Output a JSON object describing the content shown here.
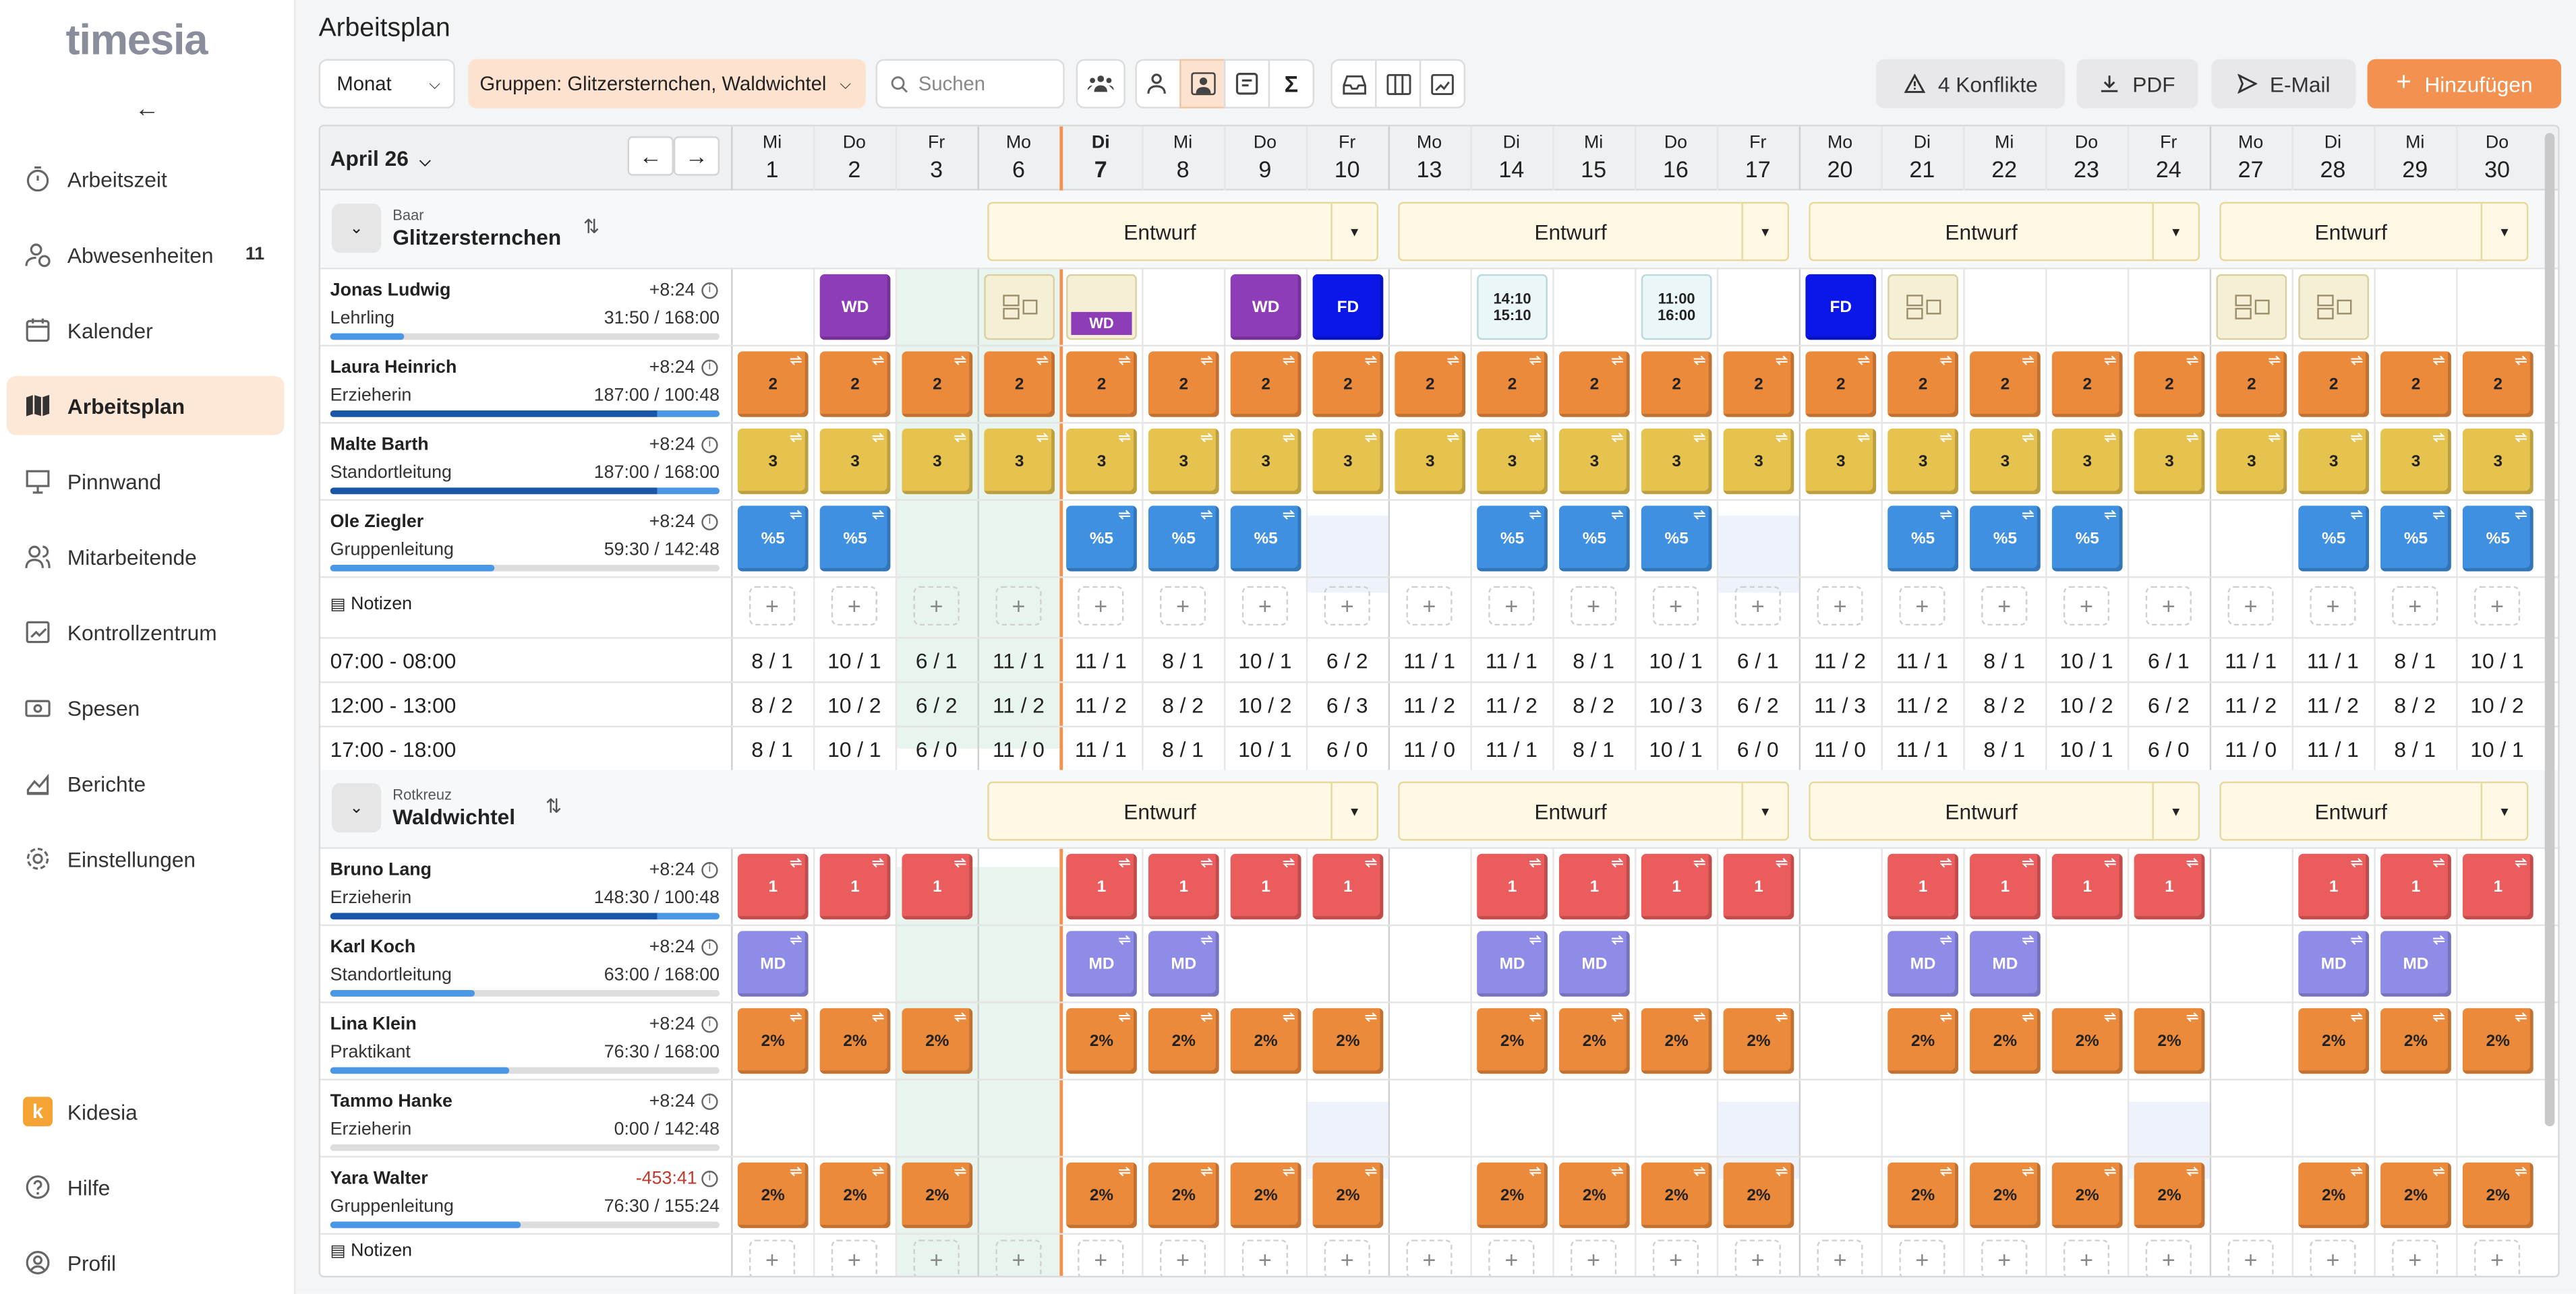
{
  "app": {
    "logo": "timesia",
    "page_title": "Arbeitsplan"
  },
  "sidebar": {
    "items": [
      {
        "label": "Arbeitszeit",
        "icon": "timer-icon"
      },
      {
        "label": "Abwesenheiten",
        "icon": "absence-icon",
        "badge": "11"
      },
      {
        "label": "Kalender",
        "icon": "calendar-icon"
      },
      {
        "label": "Arbeitsplan",
        "icon": "map-icon",
        "active": true
      },
      {
        "label": "Pinnwand",
        "icon": "pinboard-icon"
      },
      {
        "label": "Mitarbeitende",
        "icon": "people-icon"
      },
      {
        "label": "Kontrollzentrum",
        "icon": "chart-box-icon"
      },
      {
        "label": "Spesen",
        "icon": "money-icon"
      },
      {
        "label": "Berichte",
        "icon": "report-icon"
      },
      {
        "label": "Einstellungen",
        "icon": "gear-icon"
      }
    ],
    "bottom": [
      {
        "label": "Kidesia",
        "icon": "kidesia-icon"
      },
      {
        "label": "Hilfe",
        "icon": "help-icon"
      },
      {
        "label": "Profil",
        "icon": "profile-icon"
      }
    ]
  },
  "toolbar": {
    "period": "Monat",
    "groups": "Gruppen: Glitzersternchen, Waldwichtel",
    "search_placeholder": "Suchen",
    "conflicts": "4 Konflikte",
    "pdf": "PDF",
    "email": "E-Mail",
    "add": "Hinzufügen"
  },
  "calendar": {
    "month": "April 26",
    "days": [
      {
        "wd": "Mi",
        "d": "1"
      },
      {
        "wd": "Do",
        "d": "2"
      },
      {
        "wd": "Fr",
        "d": "3"
      },
      {
        "wd": "Mo",
        "d": "6"
      },
      {
        "wd": "Di",
        "d": "7",
        "today": true
      },
      {
        "wd": "Mi",
        "d": "8"
      },
      {
        "wd": "Do",
        "d": "9"
      },
      {
        "wd": "Fr",
        "d": "10"
      },
      {
        "wd": "Mo",
        "d": "13"
      },
      {
        "wd": "Di",
        "d": "14"
      },
      {
        "wd": "Mi",
        "d": "15"
      },
      {
        "wd": "Do",
        "d": "16"
      },
      {
        "wd": "Fr",
        "d": "17"
      },
      {
        "wd": "Mo",
        "d": "20"
      },
      {
        "wd": "Di",
        "d": "21"
      },
      {
        "wd": "Mi",
        "d": "22"
      },
      {
        "wd": "Do",
        "d": "23"
      },
      {
        "wd": "Fr",
        "d": "24"
      },
      {
        "wd": "Mo",
        "d": "27"
      },
      {
        "wd": "Di",
        "d": "28"
      },
      {
        "wd": "Mi",
        "d": "29"
      },
      {
        "wd": "Do",
        "d": "30"
      }
    ]
  },
  "groups": [
    {
      "location": "Baar",
      "name": "Glitzersternchen",
      "status": "Entwurf",
      "people": [
        {
          "name": "Jonas Ludwig",
          "delta": "+8:24",
          "role": "Lehrling",
          "hours": "31:50 / 168:00",
          "progress": 0.19
        },
        {
          "name": "Laura Heinrich",
          "delta": "+8:24",
          "role": "Erzieherin",
          "hours": "187:00 / 100:48",
          "progress": 1.0
        },
        {
          "name": "Malte Barth",
          "delta": "+8:24",
          "role": "Standortleitung",
          "hours": "187:00 / 168:00",
          "progress": 1.0
        },
        {
          "name": "Ole Ziegler",
          "delta": "+8:24",
          "role": "Gruppenleitung",
          "hours": "59:30 / 142:48",
          "progress": 0.42
        }
      ],
      "notes_label": "Notizen",
      "slots": [
        {
          "label": "07:00 - 08:00",
          "values": [
            "8 / 1",
            "10 / 1",
            "6 / 1",
            "11 / 1",
            "11 / 1",
            "8 / 1",
            "10 / 1",
            "6 / 2",
            "11 / 1",
            "11 / 1",
            "8 / 1",
            "10 / 1",
            "6 / 1",
            "11 / 2",
            "11 / 1",
            "8 / 1",
            "10 / 1",
            "6 / 1",
            "11 / 1",
            "11 / 1",
            "8 / 1",
            "10 / 1"
          ]
        },
        {
          "label": "12:00 - 13:00",
          "values": [
            "8 / 2",
            "10 / 2",
            "6 / 2",
            "11 / 2",
            "11 / 2",
            "8 / 2",
            "10 / 2",
            "6 / 3",
            "11 / 2",
            "11 / 2",
            "8 / 2",
            "10 / 3",
            "6 / 2",
            "11 / 3",
            "11 / 2",
            "8 / 2",
            "10 / 2",
            "6 / 2",
            "11 / 2",
            "11 / 2",
            "8 / 2",
            "10 / 2"
          ]
        },
        {
          "label": "17:00 - 18:00",
          "values": [
            "8 / 1",
            "10 / 1",
            "6 / 0",
            "11 / 0",
            "11 / 1",
            "8 / 1",
            "10 / 1",
            "6 / 0",
            "11 / 0",
            "11 / 1",
            "8 / 1",
            "10 / 1",
            "6 / 0",
            "11 / 0",
            "11 / 1",
            "8 / 1",
            "10 / 1",
            "6 / 0",
            "11 / 0",
            "11 / 1",
            "8 / 1",
            "10 / 1"
          ]
        }
      ]
    },
    {
      "location": "Rotkreuz",
      "name": "Waldwichtel",
      "status": "Entwurf",
      "people": [
        {
          "name": "Bruno Lang",
          "delta": "+8:24",
          "role": "Erzieherin",
          "hours": "148:30 / 100:48",
          "progress": 1.0
        },
        {
          "name": "Karl Koch",
          "delta": "+8:24",
          "role": "Standortleitung",
          "hours": "63:00 / 168:00",
          "progress": 0.37
        },
        {
          "name": "Lina Klein",
          "delta": "+8:24",
          "role": "Praktikant",
          "hours": "76:30 / 168:00",
          "progress": 0.46
        },
        {
          "name": "Tammo Hanke",
          "delta": "+8:24",
          "role": "Erzieherin",
          "hours": "0:00 / 142:48",
          "progress": 0
        },
        {
          "name": "Yara Walter",
          "delta": "-453:41",
          "role": "Gruppenleitung",
          "hours": "76:30 / 155:24",
          "progress": 0.49
        }
      ],
      "notes_label": "Notizen"
    }
  ],
  "shift_labels": {
    "wd": "WD",
    "fd": "FD",
    "md": "MD",
    "two": "2",
    "three": "3",
    "p5": "%5",
    "one": "1",
    "p2": "2%",
    "t1a": "14:10",
    "t1b": "15:10",
    "t2a": "11:00",
    "t2b": "16:00"
  },
  "colors": {
    "accent": "#f39150",
    "orange": "#ec8a3c",
    "yellow": "#e6c24f",
    "blue": "#3f90e0",
    "red": "#eb5d5d",
    "purple": "#8f8ce8",
    "wd": "#8e3db8",
    "fd": "#0a17e8"
  }
}
